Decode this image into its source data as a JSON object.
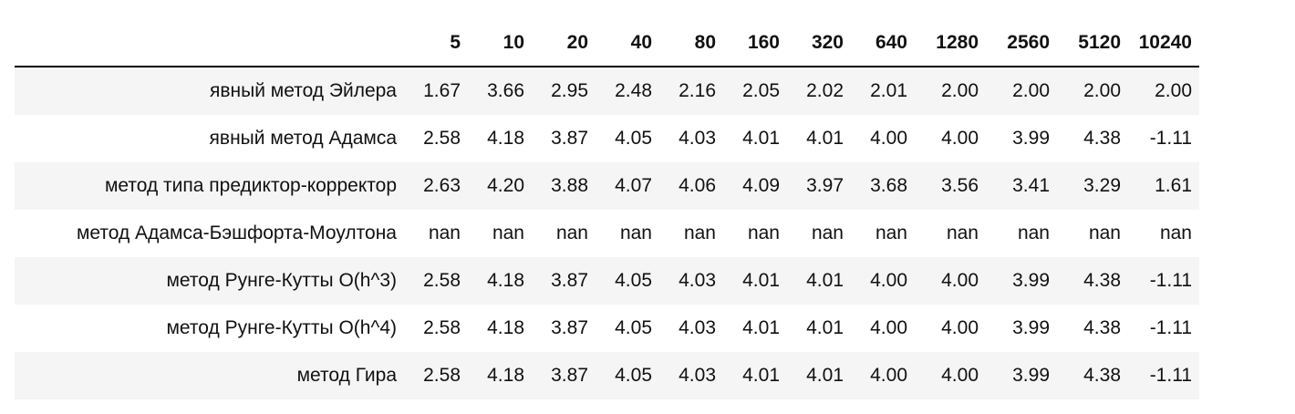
{
  "table": {
    "index_header": "",
    "columns": [
      "5",
      "10",
      "20",
      "40",
      "80",
      "160",
      "320",
      "640",
      "1280",
      "2560",
      "5120",
      "10240"
    ],
    "rows": [
      {
        "label": "явный метод Эйлера",
        "values": [
          "1.67",
          "3.66",
          "2.95",
          "2.48",
          "2.16",
          "2.05",
          "2.02",
          "2.01",
          "2.00",
          "2.00",
          "2.00",
          "2.00"
        ]
      },
      {
        "label": "явный метод Адамса",
        "values": [
          "2.58",
          "4.18",
          "3.87",
          "4.05",
          "4.03",
          "4.01",
          "4.01",
          "4.00",
          "4.00",
          "3.99",
          "4.38",
          "-1.11"
        ]
      },
      {
        "label": "метод типа предиктор-корректор",
        "values": [
          "2.63",
          "4.20",
          "3.88",
          "4.07",
          "4.06",
          "4.09",
          "3.97",
          "3.68",
          "3.56",
          "3.41",
          "3.29",
          "1.61"
        ]
      },
      {
        "label": "метод Адамса-Бэшфорта-Моултона",
        "values": [
          "nan",
          "nan",
          "nan",
          "nan",
          "nan",
          "nan",
          "nan",
          "nan",
          "nan",
          "nan",
          "nan",
          "nan"
        ]
      },
      {
        "label": "метод Рунге-Кутты O(h^3)",
        "values": [
          "2.58",
          "4.18",
          "3.87",
          "4.05",
          "4.03",
          "4.01",
          "4.01",
          "4.00",
          "4.00",
          "3.99",
          "4.38",
          "-1.11"
        ]
      },
      {
        "label": "метод Рунге-Кутты O(h^4)",
        "values": [
          "2.58",
          "4.18",
          "3.87",
          "4.05",
          "4.03",
          "4.01",
          "4.01",
          "4.00",
          "4.00",
          "3.99",
          "4.38",
          "-1.11"
        ]
      },
      {
        "label": "метод Гира",
        "values": [
          "2.58",
          "4.18",
          "3.87",
          "4.05",
          "4.03",
          "4.01",
          "4.01",
          "4.00",
          "4.00",
          "3.99",
          "4.38",
          "-1.11"
        ]
      }
    ]
  }
}
